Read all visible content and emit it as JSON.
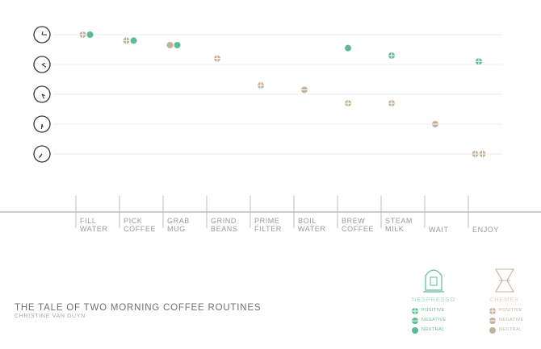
{
  "chart_data": {
    "type": "scatter",
    "title": "THE TALE OF TWO MORNING COFFEE ROUTINES",
    "subtitle": "CHRISTINE VAN DUYN",
    "y_levels": 5,
    "steps": [
      "FILL\nWATER",
      "PICK\nCOFFEE",
      "GRAB\nMUG",
      "GRIND\nBEANS",
      "PRIME\nFILTER",
      "BOIL\nWATER",
      "BREW\nCOFFEE",
      "STEAM\nMILK",
      "WAIT",
      "ENJOY"
    ],
    "series": [
      {
        "name": "NESPRESSO",
        "color": "#5dbb93",
        "points": [
          {
            "x": 0,
            "y": 1,
            "sentiment": "neutral"
          },
          {
            "x": 1,
            "y": 1.2,
            "sentiment": "neutral"
          },
          {
            "x": 2,
            "y": 1.35,
            "sentiment": "neutral"
          },
          {
            "x": 6,
            "y": 1.45,
            "sentiment": "neutral"
          },
          {
            "x": 7,
            "y": 1.7,
            "sentiment": "positive"
          },
          {
            "x": 9,
            "y": 1.9,
            "sentiment": "positive"
          }
        ]
      },
      {
        "name": "CHEMEX",
        "color": "#c4b198",
        "points": [
          {
            "x": 0,
            "y": 1,
            "sentiment": "positive"
          },
          {
            "x": 1,
            "y": 1.2,
            "sentiment": "positive"
          },
          {
            "x": 2,
            "y": 1.35,
            "sentiment": "neutral"
          },
          {
            "x": 3,
            "y": 1.8,
            "sentiment": "positive"
          },
          {
            "x": 4,
            "y": 2.7,
            "sentiment": "positive"
          },
          {
            "x": 5,
            "y": 2.85,
            "sentiment": "negative"
          },
          {
            "x": 6,
            "y": 3.3,
            "sentiment": "positive"
          },
          {
            "x": 7,
            "y": 3.3,
            "sentiment": "positive"
          },
          {
            "x": 8,
            "y": 4.0,
            "sentiment": "negative"
          },
          {
            "x": 9,
            "y": 5.0,
            "sentiment": "positive"
          },
          {
            "x": 9,
            "y": 5.0,
            "sentiment": "positive"
          }
        ]
      }
    ],
    "legend": {
      "position": "bottom-right",
      "items": [
        "POSITIVE",
        "NEGATIVE",
        "NEUTRAL"
      ]
    },
    "grid": true
  }
}
